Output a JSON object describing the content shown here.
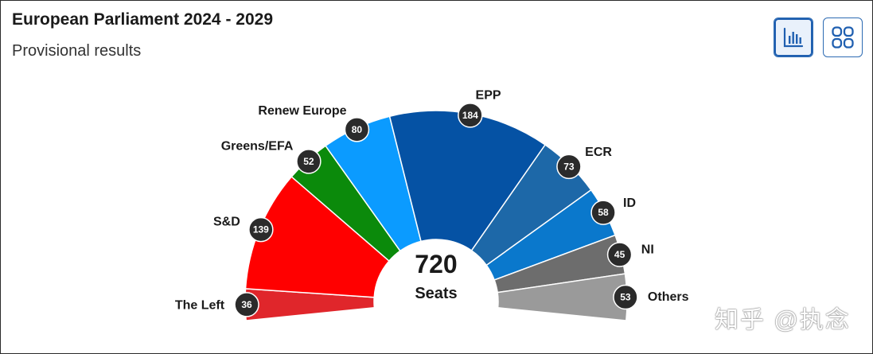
{
  "header": {
    "title": "European Parliament 2024 - 2029",
    "subtitle": "Provisional results"
  },
  "toolbar": {
    "views": [
      {
        "icon": "bar-chart-icon",
        "active": true
      },
      {
        "icon": "grid-icon",
        "active": false
      }
    ]
  },
  "watermark": "知乎 @执念",
  "chart_data": {
    "type": "pie",
    "variant": "parliament-semicircle",
    "title": "European Parliament 2024 - 2029",
    "subtitle": "Provisional results",
    "total": {
      "value": "720",
      "label": "Seats"
    },
    "parties": [
      {
        "name": "The Left",
        "seats": 36,
        "color": "#e0262b"
      },
      {
        "name": "S&D",
        "seats": 139,
        "color": "#ff0000"
      },
      {
        "name": "Greens/EFA",
        "seats": 52,
        "color": "#0b8a0b"
      },
      {
        "name": "Renew Europe",
        "seats": 80,
        "color": "#0b9bff"
      },
      {
        "name": "EPP",
        "seats": 184,
        "color": "#0552a4"
      },
      {
        "name": "ECR",
        "seats": 73,
        "color": "#1d68a8"
      },
      {
        "name": "ID",
        "seats": 58,
        "color": "#0a78cc"
      },
      {
        "name": "NI",
        "seats": 45,
        "color": "#6d6d6d"
      },
      {
        "name": "Others",
        "seats": 53,
        "color": "#9a9a9a"
      }
    ]
  }
}
